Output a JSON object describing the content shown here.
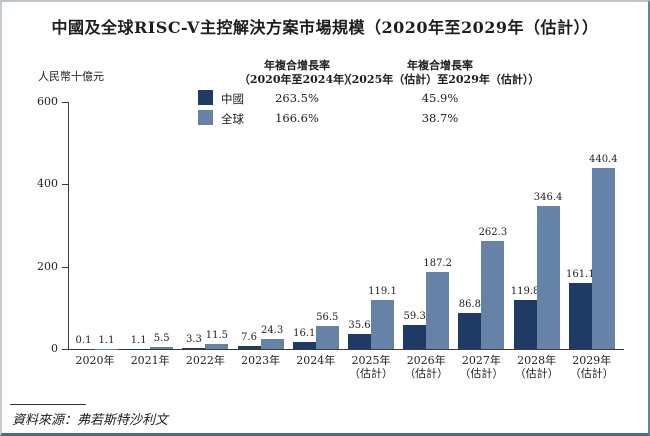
{
  "title": "中國及全球RISC-V主控解決方案市場規模（2020年至2029年（估計））",
  "source": "資料來源：弗若斯特沙利文",
  "legend": {
    "cagr_col1_title": "年複合增長率",
    "cagr_col1_sub": "（2020年至2024年）",
    "cagr_col2_title": "年複合增長率",
    "cagr_col2_sub": "（2025年（估計）至2029年（估計））",
    "rows": [
      {
        "name": "中國",
        "color": "#1F3A64",
        "cagr1": "263.5%",
        "cagr2": "45.9%"
      },
      {
        "name": "全球",
        "color": "#6683A7",
        "cagr1": "166.6%",
        "cagr2": "38.7%"
      }
    ]
  },
  "chart_data": {
    "type": "bar",
    "title": "中國及全球RISC-V主控解決方案市場規模（2020年至2029年（估計））",
    "ylabel": "人民幣十億元",
    "ylim": [
      0,
      600
    ],
    "yticks": [
      0,
      200,
      400,
      600
    ],
    "grid": false,
    "legend_position": "top",
    "categories": [
      [
        "2020年"
      ],
      [
        "2021年"
      ],
      [
        "2022年"
      ],
      [
        "2023年"
      ],
      [
        "2024年"
      ],
      [
        "2025年",
        "（估計）"
      ],
      [
        "2026年",
        "（估計）"
      ],
      [
        "2027年",
        "（估計）"
      ],
      [
        "2028年",
        "（估計）"
      ],
      [
        "2029年",
        "（估計）"
      ]
    ],
    "series": [
      {
        "name": "中國",
        "color": "#1F3A64",
        "values": [
          0.1,
          1.1,
          3.3,
          7.6,
          16.1,
          35.6,
          59.3,
          86.8,
          119.8,
          161.1
        ]
      },
      {
        "name": "全球",
        "color": "#6683A7",
        "values": [
          1.1,
          5.5,
          11.5,
          24.3,
          56.5,
          119.1,
          187.2,
          262.3,
          346.4,
          440.4
        ]
      }
    ]
  }
}
